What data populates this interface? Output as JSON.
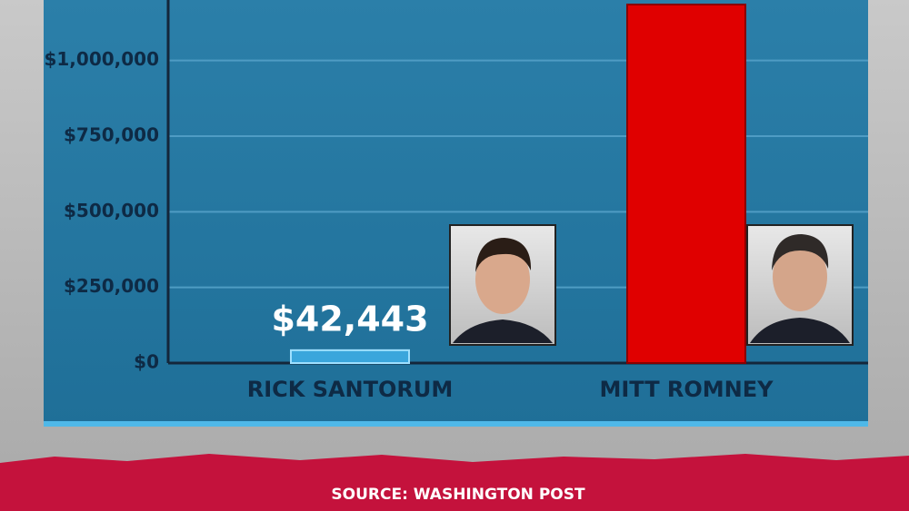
{
  "chart_data": {
    "type": "bar",
    "categories": [
      "RICK SANTORUM",
      "MITT ROMNEY"
    ],
    "values": [
      42443,
      1185000
    ],
    "value_labels": [
      "$42,443",
      null
    ],
    "colors": [
      "#3aa6dc",
      "#e00000"
    ],
    "ylim": [
      0,
      1200000
    ],
    "yticks": [
      {
        "value": 0,
        "label": "$0"
      },
      {
        "value": 250000,
        "label": "$250,000"
      },
      {
        "value": 500000,
        "label": "$500,000"
      },
      {
        "value": 750000,
        "label": "$750,000"
      },
      {
        "value": 1000000,
        "label": "$1,000,000"
      }
    ],
    "grid": true,
    "source": "SOURCE: WASHINGTON POST"
  }
}
